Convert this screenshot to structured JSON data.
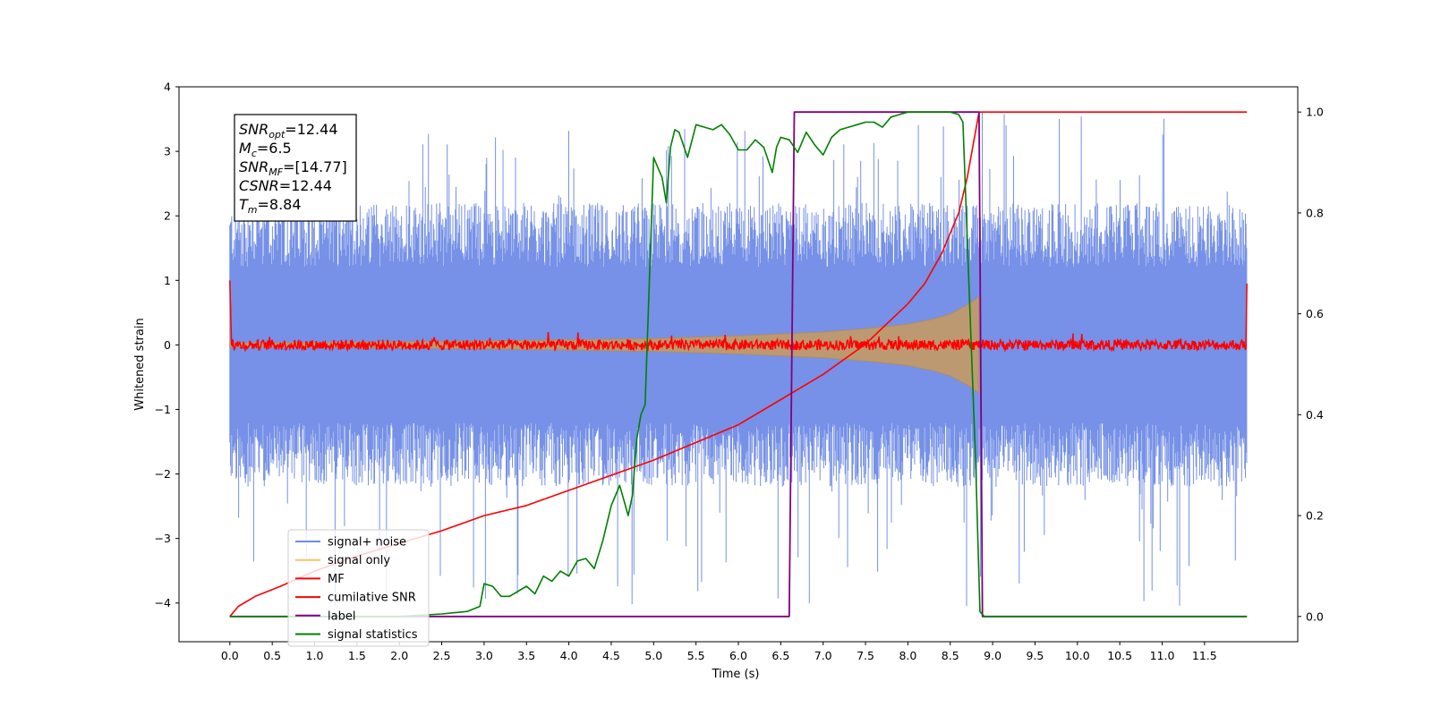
{
  "chart_data": {
    "type": "line",
    "xlabel": "Time (s)",
    "ylabel": "Whitened strain",
    "xlim": [
      -0.6,
      12.6
    ],
    "ylim": [
      -4.6,
      4.0
    ],
    "y2lim": [
      -0.05,
      1.05
    ],
    "x_ticks": [
      "0.0",
      "0.5",
      "1.0",
      "1.5",
      "2.0",
      "2.5",
      "3.0",
      "3.5",
      "4.0",
      "4.5",
      "5.0",
      "5.5",
      "6.0",
      "6.5",
      "7.0",
      "7.5",
      "8.0",
      "8.5",
      "9.0",
      "9.5",
      "10.0",
      "10.5",
      "11.0",
      "11.5"
    ],
    "y_ticks": [
      "4",
      "3",
      "2",
      "1",
      "0",
      "−1",
      "−2",
      "−3",
      "−4"
    ],
    "y2_ticks": [
      "1.0",
      "0.8",
      "0.6",
      "0.4",
      "0.2",
      "0.0"
    ],
    "annotation": [
      {
        "main": "SNR",
        "sub": "opt",
        "value": "=12.44"
      },
      {
        "main": "M",
        "sub": "c",
        "value": "=6.5"
      },
      {
        "main": "SNR",
        "sub": "MF",
        "value": "=[14.77]"
      },
      {
        "main": "CSNR",
        "sub": "",
        "value": "=12.44"
      },
      {
        "main": "T",
        "sub": "m",
        "value": "=8.84"
      }
    ],
    "legend_position": "lower-left",
    "series": [
      {
        "name": "signal+ noise",
        "color": "#6f8be6",
        "axis": "left",
        "description": "noise band",
        "band_range": [
          -2.2,
          2.2
        ],
        "spike_range": [
          -4.1,
          3.6
        ],
        "x_range": [
          0.0,
          12.0
        ]
      },
      {
        "name": "signal only",
        "color": "#f5c26b",
        "axis": "left",
        "envelope_x": [
          0.0,
          2.0,
          4.0,
          5.0,
          6.0,
          6.5,
          7.0,
          7.5,
          8.0,
          8.3,
          8.5,
          8.7,
          8.84
        ],
        "envelope_y": [
          0.03,
          0.05,
          0.08,
          0.1,
          0.14,
          0.17,
          0.2,
          0.25,
          0.32,
          0.4,
          0.48,
          0.62,
          0.75
        ]
      },
      {
        "name": "MF",
        "color": "#ff0000",
        "axis": "left",
        "x_range": [
          0.0,
          12.0
        ],
        "edge_values": [
          1.0,
          0.95
        ],
        "noise_amplitude": 0.08
      },
      {
        "name": "cumilative SNR",
        "color": "#ff0000",
        "axis": "right",
        "x": [
          0.0,
          0.1,
          0.3,
          0.6,
          1.0,
          1.5,
          2.0,
          2.5,
          3.0,
          3.5,
          4.0,
          4.5,
          5.0,
          5.5,
          6.0,
          6.5,
          7.0,
          7.5,
          8.0,
          8.2,
          8.4,
          8.6,
          8.7,
          8.84,
          12.0
        ],
        "y": [
          0.0,
          0.02,
          0.04,
          0.06,
          0.09,
          0.12,
          0.145,
          0.17,
          0.2,
          0.22,
          0.25,
          0.28,
          0.31,
          0.345,
          0.38,
          0.43,
          0.48,
          0.54,
          0.62,
          0.66,
          0.72,
          0.8,
          0.87,
          1.0,
          1.0
        ]
      },
      {
        "name": "label",
        "color": "#800080",
        "axis": "right",
        "x": [
          0.0,
          6.6,
          6.66,
          8.84,
          8.88,
          12.0
        ],
        "y": [
          0.0,
          0.0,
          1.0,
          1.0,
          0.0,
          0.0
        ]
      },
      {
        "name": "signal statistics",
        "color": "#008000",
        "axis": "right",
        "x": [
          0.0,
          0.5,
          1.0,
          1.5,
          2.0,
          2.5,
          2.8,
          2.95,
          3.0,
          3.1,
          3.2,
          3.3,
          3.5,
          3.6,
          3.7,
          3.8,
          3.9,
          4.0,
          4.1,
          4.2,
          4.3,
          4.4,
          4.5,
          4.6,
          4.7,
          4.75,
          4.8,
          4.85,
          4.9,
          5.0,
          5.1,
          5.15,
          5.2,
          5.25,
          5.3,
          5.4,
          5.5,
          5.6,
          5.7,
          5.8,
          5.9,
          6.0,
          6.1,
          6.2,
          6.3,
          6.4,
          6.45,
          6.5,
          6.6,
          6.7,
          6.8,
          6.9,
          7.0,
          7.1,
          7.2,
          7.3,
          7.4,
          7.5,
          7.6,
          7.7,
          7.8,
          7.9,
          8.0,
          8.2,
          8.4,
          8.5,
          8.6,
          8.65,
          8.7,
          8.8,
          8.85,
          8.9,
          9.0,
          12.0
        ],
        "y": [
          0.0,
          0.0,
          0.0,
          0.0,
          0.0,
          0.005,
          0.01,
          0.02,
          0.065,
          0.06,
          0.04,
          0.04,
          0.06,
          0.045,
          0.08,
          0.07,
          0.09,
          0.08,
          0.11,
          0.115,
          0.095,
          0.15,
          0.22,
          0.26,
          0.2,
          0.24,
          0.35,
          0.4,
          0.42,
          0.91,
          0.87,
          0.82,
          0.93,
          0.965,
          0.96,
          0.91,
          0.975,
          0.97,
          0.965,
          0.975,
          0.955,
          0.925,
          0.925,
          0.945,
          0.93,
          0.88,
          0.93,
          0.95,
          0.945,
          0.92,
          0.96,
          0.935,
          0.915,
          0.95,
          0.965,
          0.97,
          0.975,
          0.98,
          0.98,
          0.97,
          0.99,
          0.995,
          1.0,
          1.0,
          1.0,
          1.0,
          0.995,
          0.98,
          0.75,
          0.3,
          0.01,
          0.0,
          0.0,
          0.0
        ]
      }
    ]
  }
}
